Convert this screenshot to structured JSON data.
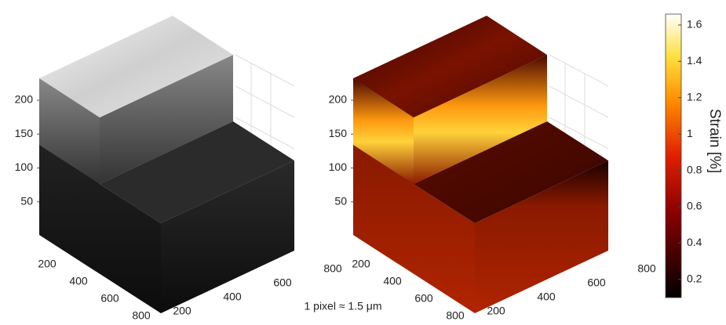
{
  "panels": [
    {
      "zticks": [
        50,
        100,
        150,
        200
      ],
      "xticks": [
        200,
        400,
        600,
        800
      ],
      "yticks": [
        200,
        400,
        600,
        800
      ]
    },
    {
      "zticks": [
        50,
        100,
        150,
        200
      ],
      "xticks": [
        200,
        400,
        600,
        800
      ],
      "yticks": [
        200,
        400,
        600,
        800
      ]
    }
  ],
  "caption": "1 pixel ≈ 1.5 μm",
  "colorbar": {
    "label": "Strain [%]",
    "lim": [
      0.1,
      1.66
    ],
    "ticks": [
      0.2,
      0.4,
      0.6,
      0.8,
      1,
      1.2,
      1.4,
      1.6
    ]
  }
}
